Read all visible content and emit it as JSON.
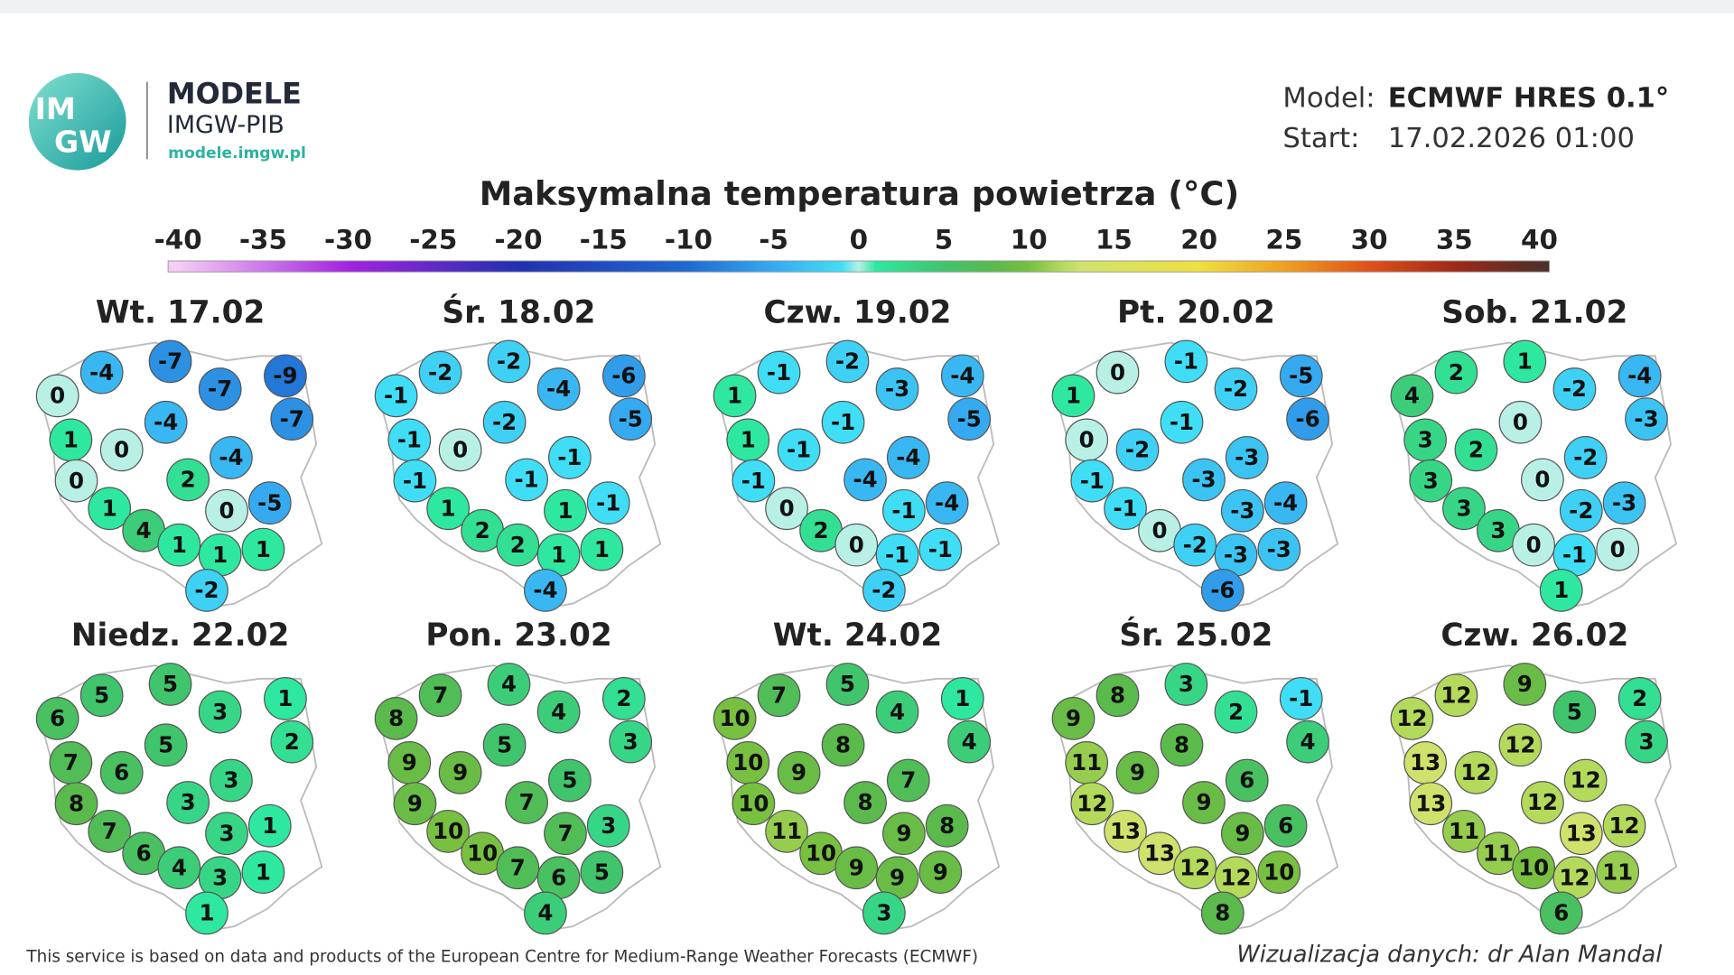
{
  "header": {
    "logo_lines": [
      "IM",
      "GW"
    ],
    "brand": "MODELE",
    "org": "IMGW-PIB",
    "url": "modele.imgw.pl"
  },
  "model": {
    "label": "Model:",
    "value": "ECMWF HRES 0.1°",
    "start_label": "Start:",
    "start_value": "17.02.2026 01:00"
  },
  "title": "Maksymalna temperatura powietrza (°C)",
  "colorbar": {
    "ticks": [
      -40,
      -35,
      -30,
      -25,
      -20,
      -15,
      -10,
      -5,
      0,
      5,
      10,
      15,
      20,
      25,
      30,
      35,
      40
    ]
  },
  "maps": [
    {
      "date": "Wt. 17.02",
      "values": [
        -4,
        -7,
        -7,
        -9,
        0,
        -4,
        -7,
        1,
        0,
        -4,
        0,
        2,
        0,
        -5,
        1,
        4,
        1,
        1,
        1,
        -2
      ]
    },
    {
      "date": "Śr. 18.02",
      "values": [
        -2,
        -2,
        -4,
        -6,
        -1,
        -2,
        -5,
        -1,
        0,
        -1,
        -1,
        -1,
        1,
        -1,
        1,
        2,
        2,
        1,
        1,
        -4
      ]
    },
    {
      "date": "Czw. 19.02",
      "values": [
        -1,
        -2,
        -3,
        -4,
        1,
        -1,
        -5,
        1,
        -1,
        -4,
        -1,
        -4,
        -1,
        -4,
        0,
        2,
        0,
        -1,
        -1,
        -2
      ]
    },
    {
      "date": "Pt. 20.02",
      "values": [
        0,
        -1,
        -2,
        -5,
        1,
        -1,
        -6,
        0,
        -2,
        -3,
        -1,
        -3,
        -3,
        -4,
        -1,
        0,
        -2,
        -3,
        -3,
        -6
      ]
    },
    {
      "date": "Sob. 21.02",
      "values": [
        2,
        1,
        -2,
        -4,
        4,
        0,
        -3,
        3,
        2,
        -2,
        3,
        0,
        -2,
        -3,
        3,
        3,
        0,
        -1,
        0,
        1
      ]
    },
    {
      "date": "Niedz. 22.02",
      "values": [
        5,
        5,
        3,
        1,
        6,
        5,
        2,
        7,
        6,
        3,
        8,
        3,
        3,
        1,
        7,
        6,
        4,
        3,
        1,
        1
      ]
    },
    {
      "date": "Pon. 23.02",
      "values": [
        7,
        4,
        4,
        2,
        8,
        5,
        3,
        9,
        9,
        5,
        9,
        7,
        7,
        3,
        10,
        10,
        7,
        6,
        5,
        4
      ]
    },
    {
      "date": "Wt. 24.02",
      "values": [
        7,
        5,
        4,
        1,
        10,
        8,
        4,
        10,
        9,
        7,
        10,
        8,
        9,
        8,
        11,
        10,
        9,
        9,
        9,
        3
      ]
    },
    {
      "date": "Śr. 25.02",
      "values": [
        8,
        3,
        2,
        -1,
        9,
        8,
        4,
        11,
        9,
        6,
        12,
        9,
        9,
        6,
        13,
        13,
        12,
        12,
        10,
        8
      ]
    },
    {
      "date": "Czw. 26.02",
      "values": [
        12,
        9,
        5,
        2,
        12,
        12,
        3,
        13,
        12,
        12,
        13,
        12,
        13,
        12,
        11,
        11,
        10,
        12,
        11,
        6
      ]
    }
  ],
  "footer": {
    "source": "This service is based on data and products of the European Centre for Medium-Range Weather Forecasts (ECMWF)",
    "credit": "Wizualizacja danych: dr Alan Mandal"
  }
}
